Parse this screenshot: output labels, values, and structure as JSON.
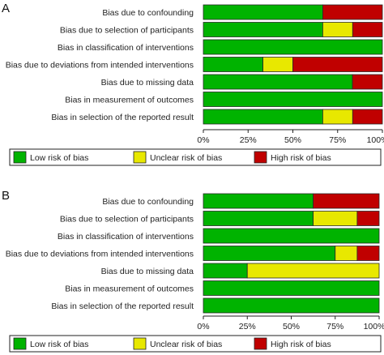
{
  "figure": {
    "panel_a_label": "A",
    "panel_b_label": "B"
  },
  "chart_data": [
    {
      "panel": "A",
      "type": "bar",
      "stacked": true,
      "orientation": "horizontal",
      "categories": [
        "Bias due to confounding",
        "Bias due to selection of participants",
        "Bias in classification of interventions",
        "Bias due to deviations from intended interventions",
        "Bias due to missing data",
        "Bias in measurement of outcomes",
        "Bias in selection of the reported result"
      ],
      "series": [
        {
          "name": "Low risk of bias",
          "color": "#00b300",
          "values": [
            66.7,
            66.7,
            100,
            33.3,
            83.3,
            100,
            66.7
          ]
        },
        {
          "name": "Unclear risk of bias",
          "color": "#e8e800",
          "values": [
            0,
            16.7,
            0,
            16.7,
            0,
            0,
            16.7
          ]
        },
        {
          "name": "High risk of bias",
          "color": "#c00000",
          "values": [
            33.3,
            16.6,
            0,
            50,
            16.7,
            0,
            16.6
          ]
        }
      ],
      "xticks": [
        "0%",
        "25%",
        "50%",
        "75%",
        "100%"
      ],
      "xlim": [
        0,
        100
      ],
      "legend": "bottom"
    },
    {
      "panel": "B",
      "type": "bar",
      "stacked": true,
      "orientation": "horizontal",
      "categories": [
        "Bias due to confounding",
        "Bias due to selection of participants",
        "Bias in classification of interventions",
        "Bias due to deviations from intended interventions",
        "Bias due to missing data",
        "Bias in measurement of outcomes",
        "Bias in selection of the reported result"
      ],
      "series": [
        {
          "name": "Low risk of bias",
          "color": "#00b300",
          "values": [
            62.5,
            62.5,
            100,
            75,
            25,
            100,
            100
          ]
        },
        {
          "name": "Unclear risk of bias",
          "color": "#e8e800",
          "values": [
            0,
            25,
            0,
            12.5,
            75,
            0,
            0
          ]
        },
        {
          "name": "High risk of bias",
          "color": "#c00000",
          "values": [
            37.5,
            12.5,
            0,
            12.5,
            0,
            0,
            0
          ]
        }
      ],
      "xticks": [
        "0%",
        "25%",
        "50%",
        "75%",
        "100%"
      ],
      "xlim": [
        0,
        100
      ],
      "legend": "bottom"
    }
  ]
}
